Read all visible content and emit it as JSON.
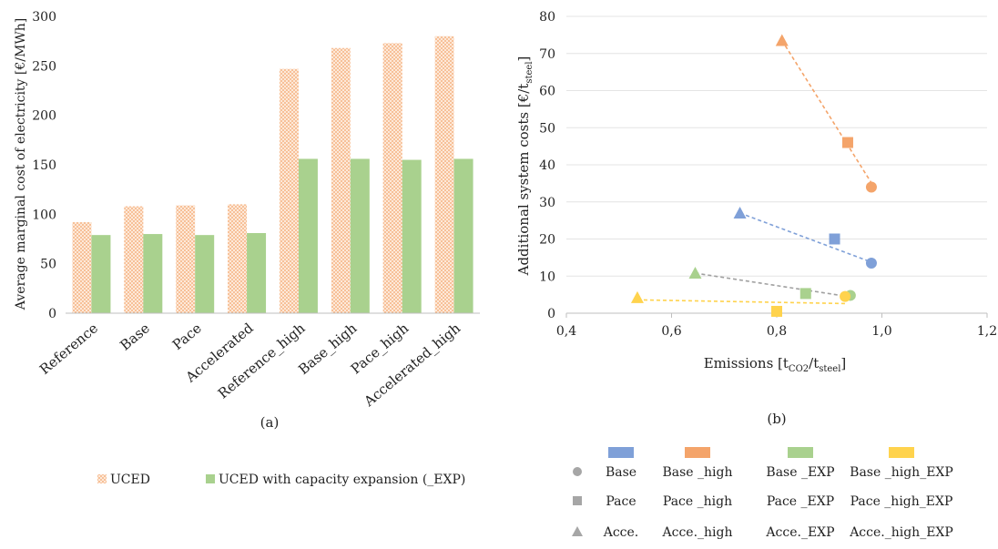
{
  "chart_data": [
    {
      "type": "bar",
      "panel_label": "(a)",
      "categories": [
        "Reference",
        "Base",
        "Pace",
        "Accelerated",
        "Reference_high",
        "Base_high",
        "Pace_high",
        "Accelerated_high"
      ],
      "series": [
        {
          "name": "UCED",
          "values": [
            92,
            108,
            109,
            110,
            247,
            268,
            273,
            280
          ],
          "color": "#f4b183",
          "pattern": "dotted-hatch"
        },
        {
          "name": "UCED with capacity expansion (_EXP)",
          "values": [
            79,
            80,
            79,
            81,
            156,
            156,
            155,
            156
          ],
          "color": "#a9d18e"
        }
      ],
      "ylabel": "Average marginal cost of electricity [€/MWh]",
      "ylim": [
        0,
        300
      ],
      "yticks": [
        "0",
        "50",
        "100",
        "150",
        "200",
        "250",
        "300"
      ],
      "grid": false,
      "legend": "bottom"
    },
    {
      "type": "scatter",
      "panel_label": "(b)",
      "xlabel": {
        "main": "Emissions [t",
        "sub1": "CO2",
        "mid": "/t",
        "sub2": "steel",
        "end": "]"
      },
      "ylabel": {
        "main": "Additional system costs [€/t",
        "sub": "steel",
        "end": "]"
      },
      "xlim": [
        0.4,
        1.2
      ],
      "ylim": [
        0,
        80
      ],
      "xticks": [
        "0,4",
        "0,6",
        "0,8",
        "1,0",
        "1,2"
      ],
      "yticks": [
        "0",
        "10",
        "20",
        "30",
        "40",
        "50",
        "60",
        "70",
        "80"
      ],
      "grid": true,
      "series": [
        {
          "name": "Base _high",
          "color": "#f4a46a",
          "points": [
            {
              "marker": "triangle",
              "x": 0.81,
              "y": 73.5
            },
            {
              "marker": "square",
              "x": 0.935,
              "y": 46
            },
            {
              "marker": "circle",
              "x": 0.98,
              "y": 34
            }
          ],
          "trendline": [
            [
              0.81,
              73.5
            ],
            [
              0.985,
              34
            ]
          ]
        },
        {
          "name": "Base",
          "color": "#7fa0d8",
          "points": [
            {
              "marker": "triangle",
              "x": 0.73,
              "y": 27
            },
            {
              "marker": "square",
              "x": 0.91,
              "y": 20
            },
            {
              "marker": "circle",
              "x": 0.98,
              "y": 13.5
            }
          ],
          "trendline": [
            [
              0.73,
              27
            ],
            [
              0.985,
              13.5
            ]
          ]
        },
        {
          "name": "Base _EXP",
          "color": "#a9d18e",
          "points": [
            {
              "marker": "triangle",
              "x": 0.645,
              "y": 10.8
            },
            {
              "marker": "square",
              "x": 0.855,
              "y": 5.3
            },
            {
              "marker": "circle",
              "x": 0.94,
              "y": 4.8
            }
          ],
          "trendline": [
            [
              0.645,
              10.8
            ],
            [
              0.94,
              4.4
            ]
          ],
          "trendline_color": "#a0a0a0"
        },
        {
          "name": "Base _high_EXP",
          "color": "#ffd34d",
          "points": [
            {
              "marker": "triangle",
              "x": 0.535,
              "y": 4.2
            },
            {
              "marker": "square",
              "x": 0.8,
              "y": 0.5
            },
            {
              "marker": "circle",
              "x": 0.93,
              "y": 4.5
            }
          ],
          "trendline": [
            [
              0.535,
              3.6
            ],
            [
              0.93,
              2.6
            ]
          ]
        }
      ]
    }
  ],
  "legend_a": [
    {
      "label": "UCED",
      "color": "#f4b183"
    },
    {
      "label": "UCED with capacity expansion (_EXP)",
      "color": "#a9d18e"
    }
  ],
  "legend_b": {
    "swatches": [
      "#7fa0d8",
      "#f4a46a",
      "#a9d18e",
      "#ffd34d"
    ],
    "rows": [
      {
        "marker": "circle",
        "labels": [
          "Base",
          "Base _high",
          "Base _EXP",
          "Base _high_EXP"
        ]
      },
      {
        "marker": "square",
        "labels": [
          "Pace",
          "Pace _high",
          "Pace _EXP",
          "Pace _high_EXP"
        ]
      },
      {
        "marker": "triangle",
        "labels": [
          "Acce.",
          "Acce._high",
          "Acce._EXP",
          "Acce._high_EXP"
        ]
      }
    ]
  }
}
